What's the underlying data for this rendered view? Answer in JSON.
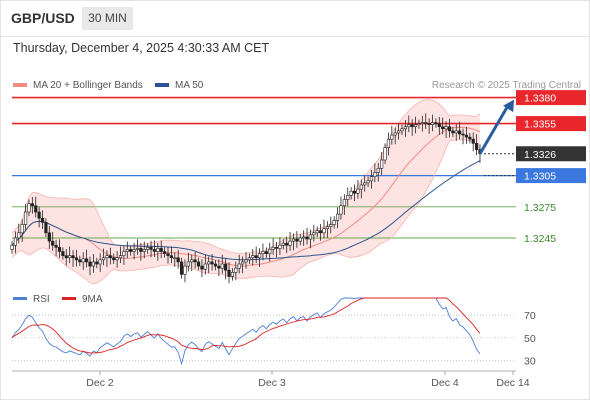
{
  "header": {
    "pair": "GBP/USD",
    "timeframe": "30 MIN"
  },
  "datetime": "Thursday, December 4, 2025 4:30:33 AM CET",
  "legend": {
    "ma20": {
      "label": "MA 20 + Bollinger Bands",
      "color": "#f28b82"
    },
    "ma50": {
      "label": "MA 50",
      "color": "#2b5591"
    }
  },
  "credit": "Research © 2025 Trading Central",
  "rsi_legend": {
    "rsi": {
      "label": "RSI",
      "color": "#4c7fd6"
    },
    "ma9": {
      "label": "9MA",
      "color": "#dd2222"
    }
  },
  "chart_data": [
    {
      "type": "candlestick",
      "title": "GBP/USD",
      "timeframe": "30 MIN",
      "x_ticks": [
        "Dec 2",
        "Dec 3",
        "Dec 4",
        "Dec 14"
      ],
      "ylim": [
        1.3195,
        1.3395
      ],
      "current_price": "1.3326",
      "levels": [
        {
          "value": 1.338,
          "label": "1.3380",
          "kind": "resistance",
          "color": "#e8262c"
        },
        {
          "value": 1.3355,
          "label": "1.3355",
          "kind": "resistance",
          "color": "#e8262c"
        },
        {
          "value": 1.3305,
          "label": "1.3305",
          "kind": "support",
          "color": "#3a78e0"
        },
        {
          "value": 1.3275,
          "label": "1.3275",
          "kind": "support",
          "color": "#6aa84f"
        },
        {
          "value": 1.3245,
          "label": "1.3245",
          "kind": "support",
          "color": "#6aa84f"
        }
      ],
      "close_approx": [
        1.3238,
        1.3245,
        1.325,
        1.3258,
        1.327,
        1.3278,
        1.3276,
        1.327,
        1.3264,
        1.326,
        1.325,
        1.3242,
        1.3238,
        1.3236,
        1.3232,
        1.3228,
        1.3226,
        1.3228,
        1.3226,
        1.3224,
        1.3222,
        1.3225,
        1.3222,
        1.3218,
        1.3222,
        1.322,
        1.3224,
        1.3226,
        1.3228,
        1.3226,
        1.3224,
        1.3226,
        1.3228,
        1.3232,
        1.3234,
        1.3232,
        1.3234,
        1.3235,
        1.3232,
        1.3234,
        1.3236,
        1.3234,
        1.3232,
        1.3235,
        1.3232,
        1.323,
        1.3228,
        1.3226,
        1.3226,
        1.3222,
        1.321,
        1.3218,
        1.3222,
        1.3224,
        1.3222,
        1.3218,
        1.3215,
        1.322,
        1.3222,
        1.322,
        1.3218,
        1.3216,
        1.322,
        1.3214,
        1.3208,
        1.3212,
        1.3216,
        1.322,
        1.3222,
        1.3224,
        1.3226,
        1.3228,
        1.3226,
        1.323,
        1.3232,
        1.323,
        1.3234,
        1.3236,
        1.3235,
        1.3238,
        1.324,
        1.3238,
        1.3242,
        1.3244,
        1.3242,
        1.3245,
        1.3246,
        1.3244,
        1.3248,
        1.325,
        1.3252,
        1.325,
        1.3254,
        1.3256,
        1.3258,
        1.3262,
        1.3268,
        1.3276,
        1.3282,
        1.3286,
        1.329,
        1.3288,
        1.3292,
        1.3296,
        1.3298,
        1.33,
        1.3304,
        1.3308,
        1.3312,
        1.332,
        1.3332,
        1.334,
        1.3344,
        1.3346,
        1.3348,
        1.335,
        1.3352,
        1.3354,
        1.3352,
        1.3354,
        1.3355,
        1.3356,
        1.3355,
        1.3354,
        1.3356,
        1.3355,
        1.3352,
        1.335,
        1.3352,
        1.3348,
        1.3346,
        1.3348,
        1.3345,
        1.3344,
        1.3342,
        1.334,
        1.3336,
        1.333,
        1.3326
      ]
    },
    {
      "type": "line",
      "title": "RSI",
      "series": [
        {
          "name": "RSI"
        },
        {
          "name": "9MA"
        }
      ],
      "y_ticks": [
        "70",
        "50",
        "30"
      ],
      "ylim": [
        20,
        85
      ]
    }
  ]
}
